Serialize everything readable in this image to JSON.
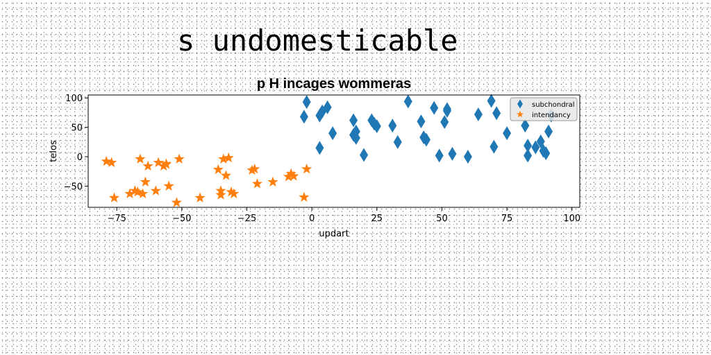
{
  "heading": "s undomesticable",
  "chart_data": {
    "type": "scatter",
    "title": "p H incages wommeras",
    "xlabel": "updart",
    "ylabel": "telos",
    "xlim": [
      -86,
      103
    ],
    "ylim": [
      -86,
      105
    ],
    "xticks": [
      -75,
      -50,
      -25,
      0,
      25,
      50,
      75,
      100
    ],
    "xtick_labels": [
      "−75",
      "−50",
      "−25",
      "0",
      "25",
      "50",
      "75",
      "100"
    ],
    "yticks": [
      -50,
      0,
      50,
      100
    ],
    "ytick_labels": [
      "−50",
      "0",
      "50",
      "100"
    ],
    "grid": false,
    "legend_position": "top-right",
    "series": [
      {
        "name": "subchondral",
        "marker": "thin_diamond",
        "color": "#1f77b4",
        "x": [
          -2,
          -3,
          3,
          4,
          6,
          3,
          8,
          16,
          17,
          17,
          16,
          20,
          23,
          24,
          25,
          31,
          33,
          37,
          42,
          43,
          44,
          47,
          49,
          51,
          52,
          52,
          54,
          60,
          64,
          69,
          70,
          71,
          75,
          82,
          83,
          83,
          86,
          88,
          89,
          90,
          91,
          92
        ],
        "y": [
          93,
          68,
          70,
          77,
          84,
          15,
          40,
          37,
          43,
          32,
          62,
          3,
          62,
          56,
          52,
          53,
          25,
          94,
          60,
          33,
          29,
          83,
          2,
          59,
          78,
          81,
          5,
          0,
          72,
          95,
          17,
          74,
          40,
          53,
          19,
          2,
          16,
          26,
          10,
          6,
          43,
          70
        ]
      },
      {
        "name": "intendancy",
        "marker": "star",
        "color": "#ff7f0e",
        "x": [
          -79,
          -77,
          -76,
          -70,
          -67,
          -68,
          -66,
          -65,
          -64,
          -63,
          -60,
          -59,
          -57,
          -56,
          -55,
          -56,
          -52,
          -51,
          -43,
          -36,
          -35,
          -35,
          -34,
          -33,
          -32,
          -31,
          -30,
          -23,
          -22,
          -21,
          -15,
          -9,
          -8,
          -7,
          -3,
          -2
        ],
        "y": [
          -8,
          -10,
          -70,
          -63,
          -60,
          -58,
          -4,
          -63,
          -43,
          -16,
          -58,
          -10,
          -16,
          -12,
          -50,
          -13,
          -78,
          -4,
          -70,
          -22,
          -58,
          -65,
          -4,
          -32,
          -2,
          -60,
          -63,
          -23,
          -21,
          -46,
          -43,
          -34,
          -29,
          -33,
          -69,
          -21
        ]
      }
    ]
  }
}
